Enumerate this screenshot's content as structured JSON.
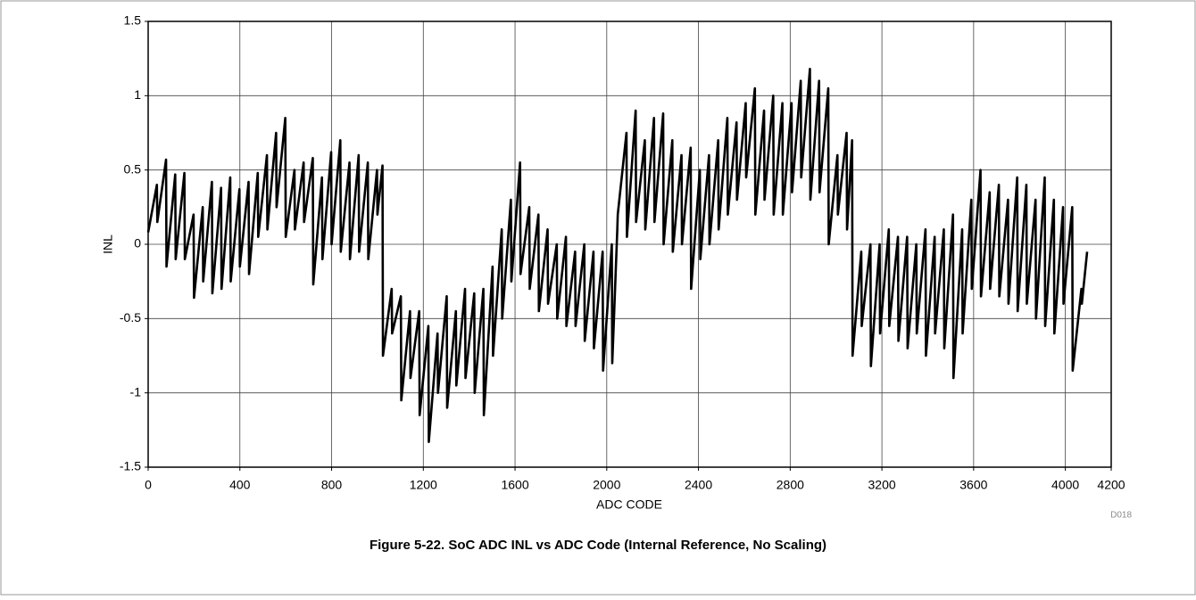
{
  "chart_data": {
    "type": "line",
    "caption": "Figure 5-22. SoC ADC INL vs ADC Code (Internal Reference, No Scaling)",
    "xlabel": "ADC CODE",
    "ylabel": "INL",
    "note": "D018",
    "xlim": [
      0,
      4200
    ],
    "xticks": [
      0,
      400,
      800,
      1200,
      1600,
      2000,
      2400,
      2800,
      3200,
      3600,
      4000,
      4200
    ],
    "ylim": [
      -1.5,
      1.5
    ],
    "yticks": [
      -1.5,
      -1,
      -0.5,
      0,
      0.5,
      1,
      1.5
    ],
    "grid": true,
    "series": [
      {
        "color": "#000000",
        "x": [
          0,
          38,
          40,
          78,
          80,
          118,
          120,
          158,
          160,
          198,
          200,
          238,
          240,
          278,
          280,
          318,
          320,
          358,
          360,
          398,
          400,
          438,
          440,
          478,
          480,
          518,
          520,
          558,
          560,
          598,
          600,
          638,
          640,
          678,
          680,
          718,
          720,
          758,
          760,
          798,
          800,
          838,
          840,
          878,
          880,
          918,
          920,
          958,
          960,
          998,
          1000,
          1022,
          1024,
          1062,
          1064,
          1102,
          1104,
          1142,
          1144,
          1182,
          1184,
          1222,
          1224,
          1262,
          1264,
          1302,
          1304,
          1342,
          1344,
          1382,
          1384,
          1422,
          1424,
          1462,
          1464,
          1502,
          1504,
          1542,
          1544,
          1582,
          1584,
          1622,
          1624,
          1662,
          1664,
          1702,
          1704,
          1742,
          1744,
          1782,
          1784,
          1822,
          1824,
          1862,
          1864,
          1902,
          1904,
          1942,
          1944,
          1982,
          1984,
          2022,
          2024,
          2046,
          2048,
          2086,
          2088,
          2126,
          2128,
          2166,
          2168,
          2206,
          2208,
          2246,
          2248,
          2286,
          2288,
          2326,
          2328,
          2366,
          2368,
          2406,
          2408,
          2446,
          2448,
          2486,
          2488,
          2526,
          2528,
          2566,
          2568,
          2606,
          2608,
          2646,
          2648,
          2686,
          2688,
          2726,
          2728,
          2766,
          2768,
          2806,
          2808,
          2846,
          2848,
          2886,
          2888,
          2926,
          2928,
          2966,
          2968,
          3006,
          3008,
          3046,
          3048,
          3070,
          3072,
          3110,
          3112,
          3150,
          3152,
          3190,
          3192,
          3230,
          3232,
          3270,
          3272,
          3310,
          3312,
          3350,
          3352,
          3390,
          3392,
          3430,
          3432,
          3470,
          3472,
          3510,
          3512,
          3550,
          3552,
          3590,
          3592,
          3630,
          3632,
          3670,
          3672,
          3710,
          3712,
          3750,
          3752,
          3790,
          3792,
          3830,
          3832,
          3870,
          3872,
          3910,
          3912,
          3950,
          3952,
          3990,
          3992,
          4030,
          4032,
          4070,
          4072,
          4095
        ],
        "values": [
          0.08,
          0.4,
          0.15,
          0.57,
          -0.15,
          0.47,
          -0.1,
          0.48,
          -0.1,
          0.2,
          -0.36,
          0.25,
          -0.25,
          0.42,
          -0.33,
          0.38,
          -0.3,
          0.45,
          -0.25,
          0.37,
          -0.15,
          0.42,
          -0.2,
          0.48,
          0.05,
          0.6,
          0.1,
          0.75,
          0.25,
          0.85,
          0.05,
          0.5,
          0.1,
          0.55,
          0.15,
          0.58,
          -0.27,
          0.45,
          -0.1,
          0.62,
          0.0,
          0.7,
          -0.05,
          0.55,
          -0.1,
          0.6,
          -0.05,
          0.55,
          -0.1,
          0.5,
          0.2,
          0.53,
          -0.75,
          -0.3,
          -0.6,
          -0.35,
          -1.05,
          -0.45,
          -0.9,
          -0.45,
          -1.15,
          -0.55,
          -1.33,
          -0.6,
          -1.0,
          -0.35,
          -1.1,
          -0.45,
          -0.95,
          -0.3,
          -0.9,
          -0.33,
          -1.0,
          -0.3,
          -1.15,
          -0.15,
          -0.75,
          0.1,
          -0.5,
          0.3,
          -0.25,
          0.55,
          -0.2,
          0.25,
          -0.3,
          0.2,
          -0.45,
          0.1,
          -0.4,
          0.0,
          -0.5,
          0.05,
          -0.55,
          -0.05,
          -0.55,
          0.0,
          -0.65,
          -0.05,
          -0.7,
          -0.05,
          -0.85,
          0.0,
          -0.8,
          0.1,
          0.2,
          0.75,
          0.05,
          0.9,
          0.15,
          0.7,
          0.1,
          0.85,
          0.15,
          0.88,
          0.0,
          0.7,
          -0.05,
          0.6,
          0.0,
          0.65,
          -0.3,
          0.5,
          -0.1,
          0.6,
          0.0,
          0.7,
          0.1,
          0.85,
          0.2,
          0.82,
          0.3,
          0.95,
          0.45,
          1.05,
          0.2,
          0.9,
          0.3,
          1.0,
          0.2,
          0.95,
          0.2,
          0.95,
          0.35,
          1.1,
          0.45,
          1.18,
          0.3,
          1.1,
          0.35,
          1.05,
          0.0,
          0.6,
          0.2,
          0.75,
          0.1,
          0.7,
          -0.75,
          -0.05,
          -0.55,
          0.0,
          -0.82,
          0.0,
          -0.6,
          0.1,
          -0.55,
          0.05,
          -0.65,
          0.05,
          -0.7,
          0.0,
          -0.6,
          0.1,
          -0.75,
          0.05,
          -0.6,
          0.1,
          -0.7,
          0.2,
          -0.9,
          0.1,
          -0.6,
          0.3,
          -0.3,
          0.5,
          -0.35,
          0.35,
          -0.3,
          0.4,
          -0.35,
          0.3,
          -0.4,
          0.45,
          -0.45,
          0.4,
          -0.4,
          0.3,
          -0.5,
          0.45,
          -0.55,
          0.3,
          -0.6,
          0.25,
          -0.4,
          0.25,
          -0.85,
          -0.3,
          -0.4,
          -0.05
        ]
      }
    ]
  }
}
